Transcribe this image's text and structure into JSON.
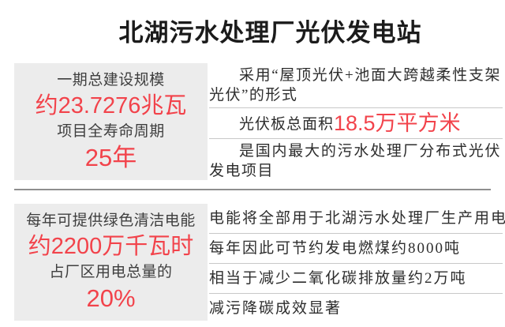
{
  "page": {
    "title": "北湖污水处理厂光伏发电站"
  },
  "colors": {
    "accent_red": "#f2434b",
    "box_bg": "#ececec",
    "section_divider": "#8f8f8f",
    "row_divider": "#c8c8c8",
    "text_dark": "#2d2d2d",
    "label_dark": "#3e3e3e",
    "title_black": "#1b1b1b"
  },
  "section1": {
    "stat_box": {
      "label1": "一期总建设规模",
      "value1": "约23.7276兆瓦",
      "label2": "项目全寿命周期",
      "value2": "25年"
    },
    "facts": [
      {
        "text": "采用“屋顶光伏+池面大跨越柔性支架光伏”的形式"
      },
      {
        "label": "光伏板总面积",
        "highlight": "18.5万平方米"
      },
      {
        "text": "是国内最大的污水处理厂分布式光伏发电项目"
      }
    ]
  },
  "section2": {
    "stat_box": {
      "label1": "每年可提供绿色清洁电能",
      "value1": "约2200万千瓦时",
      "label2": "占厂区用电总量的",
      "value2": "20%"
    },
    "facts": [
      {
        "text": "电能将全部用于北湖污水处理厂生产用电"
      },
      {
        "text": "每年因此可节约发电燃煤约8000吨"
      },
      {
        "text": "相当于减少二氧化碳排放量约2万吨"
      },
      {
        "text": "减污降碳成效显著"
      }
    ]
  }
}
